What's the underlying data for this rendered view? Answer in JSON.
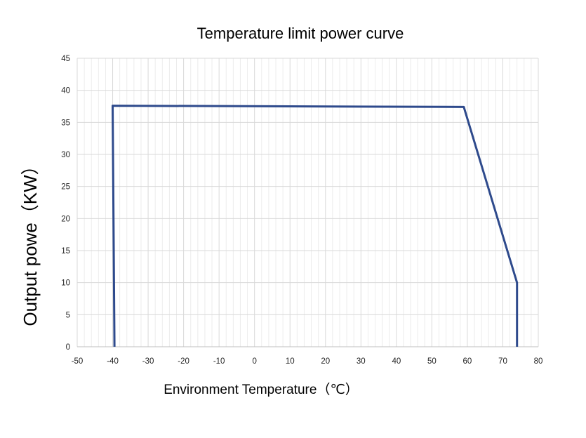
{
  "chart_data": {
    "type": "line",
    "title": "Temperature limit power curve",
    "xlabel": "Environment Temperature（℃）",
    "ylabel": "Output powe（KW）",
    "xlim": [
      -50,
      80
    ],
    "ylim": [
      0,
      45
    ],
    "xticks": [
      -50,
      -40,
      -30,
      -20,
      -10,
      0,
      10,
      20,
      30,
      40,
      50,
      60,
      70,
      80
    ],
    "yticks": [
      0,
      5,
      10,
      15,
      20,
      25,
      30,
      35,
      40,
      45
    ],
    "grid": true,
    "legend": "none",
    "series": [
      {
        "color": "#2e4a8c",
        "points": [
          {
            "x": -39.5,
            "y": 0
          },
          {
            "x": -40,
            "y": 37.6
          },
          {
            "x": 59,
            "y": 37.4
          },
          {
            "x": 74,
            "y": 10
          },
          {
            "x": 74,
            "y": 0
          }
        ]
      }
    ]
  }
}
